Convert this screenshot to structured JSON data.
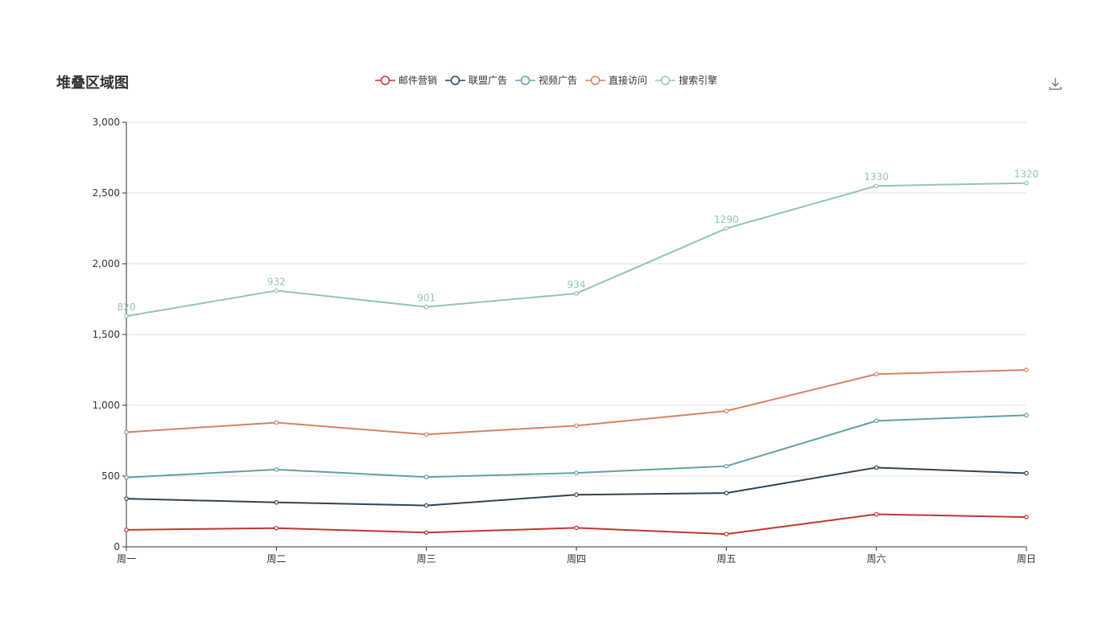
{
  "chart_data": {
    "type": "line",
    "title": "堆叠区域图",
    "stacked": true,
    "categories": [
      "周一",
      "周二",
      "周三",
      "周四",
      "周五",
      "周六",
      "周日"
    ],
    "ylim": [
      0,
      3000
    ],
    "yticks": [
      0,
      500,
      1000,
      1500,
      2000,
      2500,
      3000
    ],
    "ytick_labels": [
      "0",
      "500",
      "1,000",
      "1,500",
      "2,000",
      "2,500",
      "3,000"
    ],
    "grid": true,
    "legend_position": "top-center",
    "series": [
      {
        "name": "邮件营销",
        "values": [
          120,
          132,
          101,
          134,
          90,
          230,
          210
        ],
        "color": "#c23531"
      },
      {
        "name": "联盟广告",
        "values": [
          220,
          182,
          191,
          234,
          290,
          330,
          310
        ],
        "color": "#2f4554"
      },
      {
        "name": "视频广告",
        "values": [
          150,
          232,
          201,
          154,
          190,
          330,
          410
        ],
        "color": "#61a0a8"
      },
      {
        "name": "直接访问",
        "values": [
          320,
          332,
          301,
          334,
          390,
          330,
          320
        ],
        "color": "#d48265"
      },
      {
        "name": "搜索引擎",
        "values": [
          820,
          932,
          901,
          934,
          1290,
          1330,
          1320
        ],
        "color": "#91c7ae",
        "labels": [
          "820",
          "932",
          "901",
          "934",
          "1290",
          "1330",
          "1320"
        ]
      }
    ]
  },
  "toolbox": {
    "download_icon": "download-icon"
  }
}
